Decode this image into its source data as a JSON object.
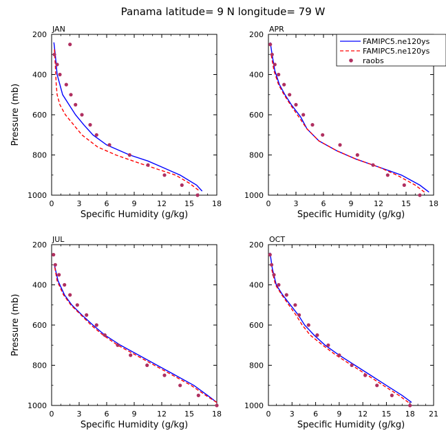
{
  "figure": {
    "title": "Panama   latitude= 9 N longitude= 79 W"
  },
  "legend": {
    "entries": [
      {
        "label": "FAMIPC5.ne120ys",
        "color": "#0000ff",
        "style": "solid-line"
      },
      {
        "label": "FAMIPC5.ne120ys",
        "color": "#ff0000",
        "style": "dashed-line"
      },
      {
        "label": "raobs",
        "color": "#b03060",
        "style": "dot"
      }
    ]
  },
  "colors": {
    "model_a": "#0000ff",
    "model_b": "#ff0000",
    "raobs": "#b03060"
  },
  "chart_data": [
    {
      "type": "line",
      "panel": "JAN",
      "xlabel": "Specific Humidity (g/kg)",
      "ylabel": "Pressure (mb)",
      "xlim": [
        0,
        18
      ],
      "ylim": [
        1000,
        200
      ],
      "y_inverted": true,
      "xticks": [
        0,
        3,
        6,
        9,
        12,
        15,
        18
      ],
      "yticks": [
        200,
        400,
        600,
        800,
        1000
      ],
      "series": [
        {
          "name": "FAMIPC5.ne120ys",
          "x": [
            16.4,
            15.8,
            14.0,
            12.0,
            10.5,
            8.5,
            6.0,
            4.5,
            3.5,
            2.6,
            1.9,
            1.2,
            0.9,
            0.6,
            0.4,
            0.25
          ],
          "y": [
            980,
            950,
            900,
            860,
            830,
            800,
            750,
            700,
            650,
            600,
            550,
            500,
            450,
            400,
            300,
            240
          ]
        },
        {
          "name": "FAMIPC5.ne120ys",
          "x": [
            16.0,
            15.0,
            13.5,
            11.5,
            9.5,
            7.0,
            5.0,
            3.3,
            2.4,
            1.5,
            0.9,
            0.6,
            0.5,
            0.4,
            0.3
          ],
          "y": [
            975,
            940,
            900,
            870,
            840,
            800,
            760,
            700,
            650,
            600,
            550,
            500,
            450,
            350,
            270
          ]
        },
        {
          "name": "raobs",
          "x": [
            15.9,
            14.2,
            12.3,
            10.5,
            8.5,
            6.3,
            4.9,
            4.2,
            3.3,
            2.6,
            2.1,
            1.6,
            0.9,
            0.6,
            0.3,
            2.0
          ],
          "y": [
            1000,
            950,
            900,
            850,
            800,
            750,
            700,
            650,
            600,
            550,
            500,
            450,
            400,
            350,
            300,
            250
          ]
        }
      ]
    },
    {
      "type": "line",
      "panel": "APR",
      "xlabel": "Specific Humidity (g/kg)",
      "ylabel": "",
      "xlim": [
        0,
        18
      ],
      "ylim": [
        1000,
        200
      ],
      "y_inverted": true,
      "xticks": [
        0,
        3,
        6,
        9,
        12,
        15,
        18
      ],
      "yticks": [
        200,
        400,
        600,
        800,
        1000
      ],
      "series": [
        {
          "name": "FAMIPC5.ne120ys",
          "x": [
            17.5,
            16.5,
            14.5,
            12.0,
            9.5,
            7.5,
            5.5,
            4.2,
            3.5,
            2.5,
            1.8,
            1.2,
            0.7,
            0.4,
            0.2
          ],
          "y": [
            985,
            950,
            900,
            860,
            820,
            780,
            730,
            670,
            610,
            550,
            500,
            450,
            380,
            300,
            240
          ]
        },
        {
          "name": "FAMIPC5.ne120ys",
          "x": [
            17.0,
            16.0,
            14.0,
            12.0,
            9.5,
            7.5,
            5.5,
            4.2,
            3.3,
            2.4,
            1.7,
            1.1,
            0.6,
            0.3
          ],
          "y": [
            985,
            950,
            900,
            860,
            820,
            780,
            730,
            670,
            610,
            550,
            500,
            450,
            380,
            300
          ]
        },
        {
          "name": "raobs",
          "x": [
            16.5,
            14.8,
            13.0,
            11.4,
            9.7,
            7.8,
            5.9,
            4.8,
            3.8,
            3.0,
            2.3,
            1.7,
            1.1,
            0.7,
            0.4,
            0.2
          ],
          "y": [
            1000,
            950,
            900,
            850,
            800,
            750,
            700,
            650,
            600,
            550,
            500,
            450,
            400,
            350,
            300,
            250
          ]
        }
      ]
    },
    {
      "type": "line",
      "panel": "JUL",
      "xlabel": "Specific Humidity (g/kg)",
      "ylabel": "Pressure (mb)",
      "xlim": [
        0,
        18
      ],
      "ylim": [
        1000,
        200
      ],
      "y_inverted": true,
      "xticks": [
        0,
        3,
        6,
        9,
        12,
        15,
        18
      ],
      "yticks": [
        200,
        400,
        600,
        800,
        1000
      ],
      "series": [
        {
          "name": "FAMIPC5.ne120ys",
          "x": [
            18.0,
            17.0,
            15.5,
            13.5,
            11.5,
            9.5,
            7.5,
            5.8,
            4.5,
            3.3,
            2.2,
            1.4,
            0.7,
            0.3
          ],
          "y": [
            985,
            950,
            900,
            850,
            800,
            750,
            700,
            650,
            600,
            550,
            500,
            450,
            380,
            300
          ]
        },
        {
          "name": "FAMIPC5.ne120ys",
          "x": [
            18.0,
            16.8,
            15.2,
            13.2,
            11.2,
            9.2,
            7.2,
            5.6,
            4.3,
            3.2,
            2.1,
            1.3,
            0.6,
            0.3
          ],
          "y": [
            985,
            950,
            900,
            850,
            800,
            750,
            700,
            650,
            600,
            550,
            500,
            450,
            380,
            300
          ]
        },
        {
          "name": "raobs",
          "x": [
            18.0,
            16.0,
            14.0,
            12.3,
            10.4,
            8.6,
            7.2,
            5.8,
            4.9,
            3.8,
            2.8,
            2.0,
            1.4,
            0.8,
            0.4,
            0.2
          ],
          "y": [
            1000,
            950,
            900,
            850,
            800,
            750,
            700,
            650,
            600,
            550,
            500,
            450,
            400,
            350,
            300,
            250
          ]
        }
      ]
    },
    {
      "type": "line",
      "panel": "OCT",
      "xlabel": "Specific Humidity (g/kg)",
      "ylabel": "",
      "xlim": [
        0,
        21
      ],
      "ylim": [
        1000,
        200
      ],
      "y_inverted": true,
      "xticks": [
        0,
        3,
        6,
        9,
        12,
        15,
        18,
        21
      ],
      "yticks": [
        200,
        400,
        600,
        800,
        1000
      ],
      "series": [
        {
          "name": "FAMIPC5.ne120ys",
          "x": [
            18.2,
            17.0,
            15.0,
            13.0,
            11.0,
            9.0,
            7.2,
            5.8,
            4.6,
            3.8,
            2.8,
            1.8,
            1.0,
            0.5,
            0.2
          ],
          "y": [
            985,
            950,
            900,
            850,
            800,
            750,
            700,
            650,
            600,
            550,
            500,
            450,
            400,
            320,
            240
          ]
        },
        {
          "name": "FAMIPC5.ne120ys",
          "x": [
            17.8,
            16.6,
            14.6,
            12.6,
            10.6,
            8.6,
            6.9,
            5.3,
            4.3,
            3.5,
            2.6,
            1.7,
            0.9,
            0.4
          ],
          "y": [
            985,
            950,
            900,
            850,
            800,
            750,
            700,
            650,
            600,
            550,
            500,
            450,
            400,
            320
          ]
        },
        {
          "name": "raobs",
          "x": [
            18.0,
            15.7,
            13.8,
            12.3,
            10.6,
            9.0,
            7.6,
            6.2,
            5.1,
            3.9,
            3.4,
            2.3,
            1.3,
            0.7,
            0.4,
            0.2
          ],
          "y": [
            1000,
            950,
            900,
            850,
            800,
            750,
            700,
            650,
            600,
            550,
            500,
            450,
            400,
            350,
            300,
            250
          ]
        }
      ]
    }
  ]
}
